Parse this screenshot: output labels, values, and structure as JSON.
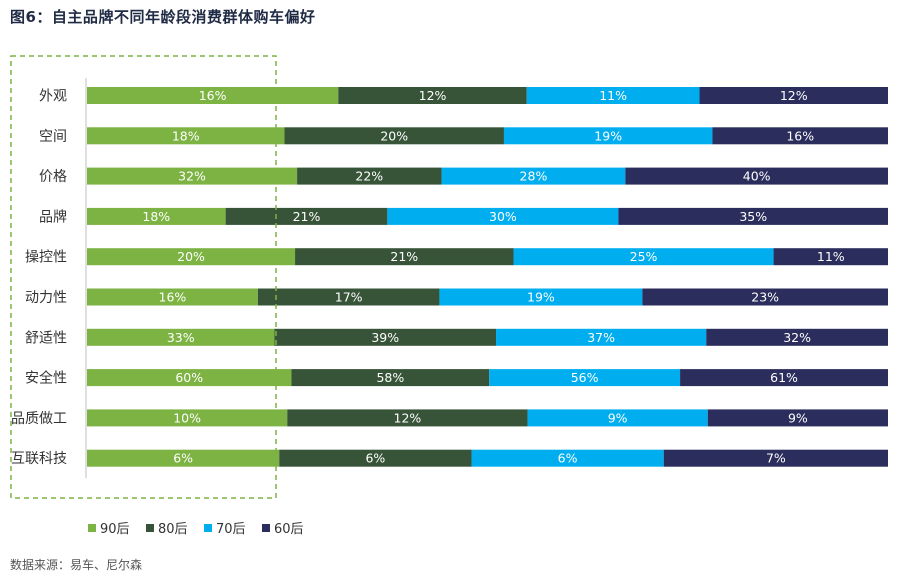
{
  "title": "图6：自主品牌不同年龄段消费群体购车偏好",
  "source": "数据来源：易车、尼尔森",
  "chart_data": {
    "type": "bar",
    "orientation": "horizontal",
    "stacked": true,
    "normalized": true,
    "categories": [
      "外观",
      "空间",
      "价格",
      "品牌",
      "操控性",
      "动力性",
      "舒适性",
      "安全性",
      "品质做工",
      "互联科技"
    ],
    "series": [
      {
        "name": "90后",
        "color": "#7cb342",
        "values": [
          16,
          18,
          32,
          18,
          20,
          16,
          33,
          60,
          10,
          6
        ]
      },
      {
        "name": "80后",
        "color": "#375438",
        "values": [
          12,
          20,
          22,
          21,
          21,
          17,
          39,
          58,
          12,
          6
        ]
      },
      {
        "name": "70后",
        "color": "#00aeef",
        "values": [
          11,
          19,
          28,
          30,
          25,
          19,
          37,
          56,
          9,
          6
        ]
      },
      {
        "name": "60后",
        "color": "#2b2d5c",
        "values": [
          12,
          16,
          40,
          35,
          11,
          23,
          32,
          61,
          9,
          7
        ]
      }
    ],
    "value_suffix": "%",
    "legend_position": "bottom-left",
    "highlight": {
      "series": "90后",
      "style": "dashed-box",
      "color": "#7cb342"
    }
  }
}
